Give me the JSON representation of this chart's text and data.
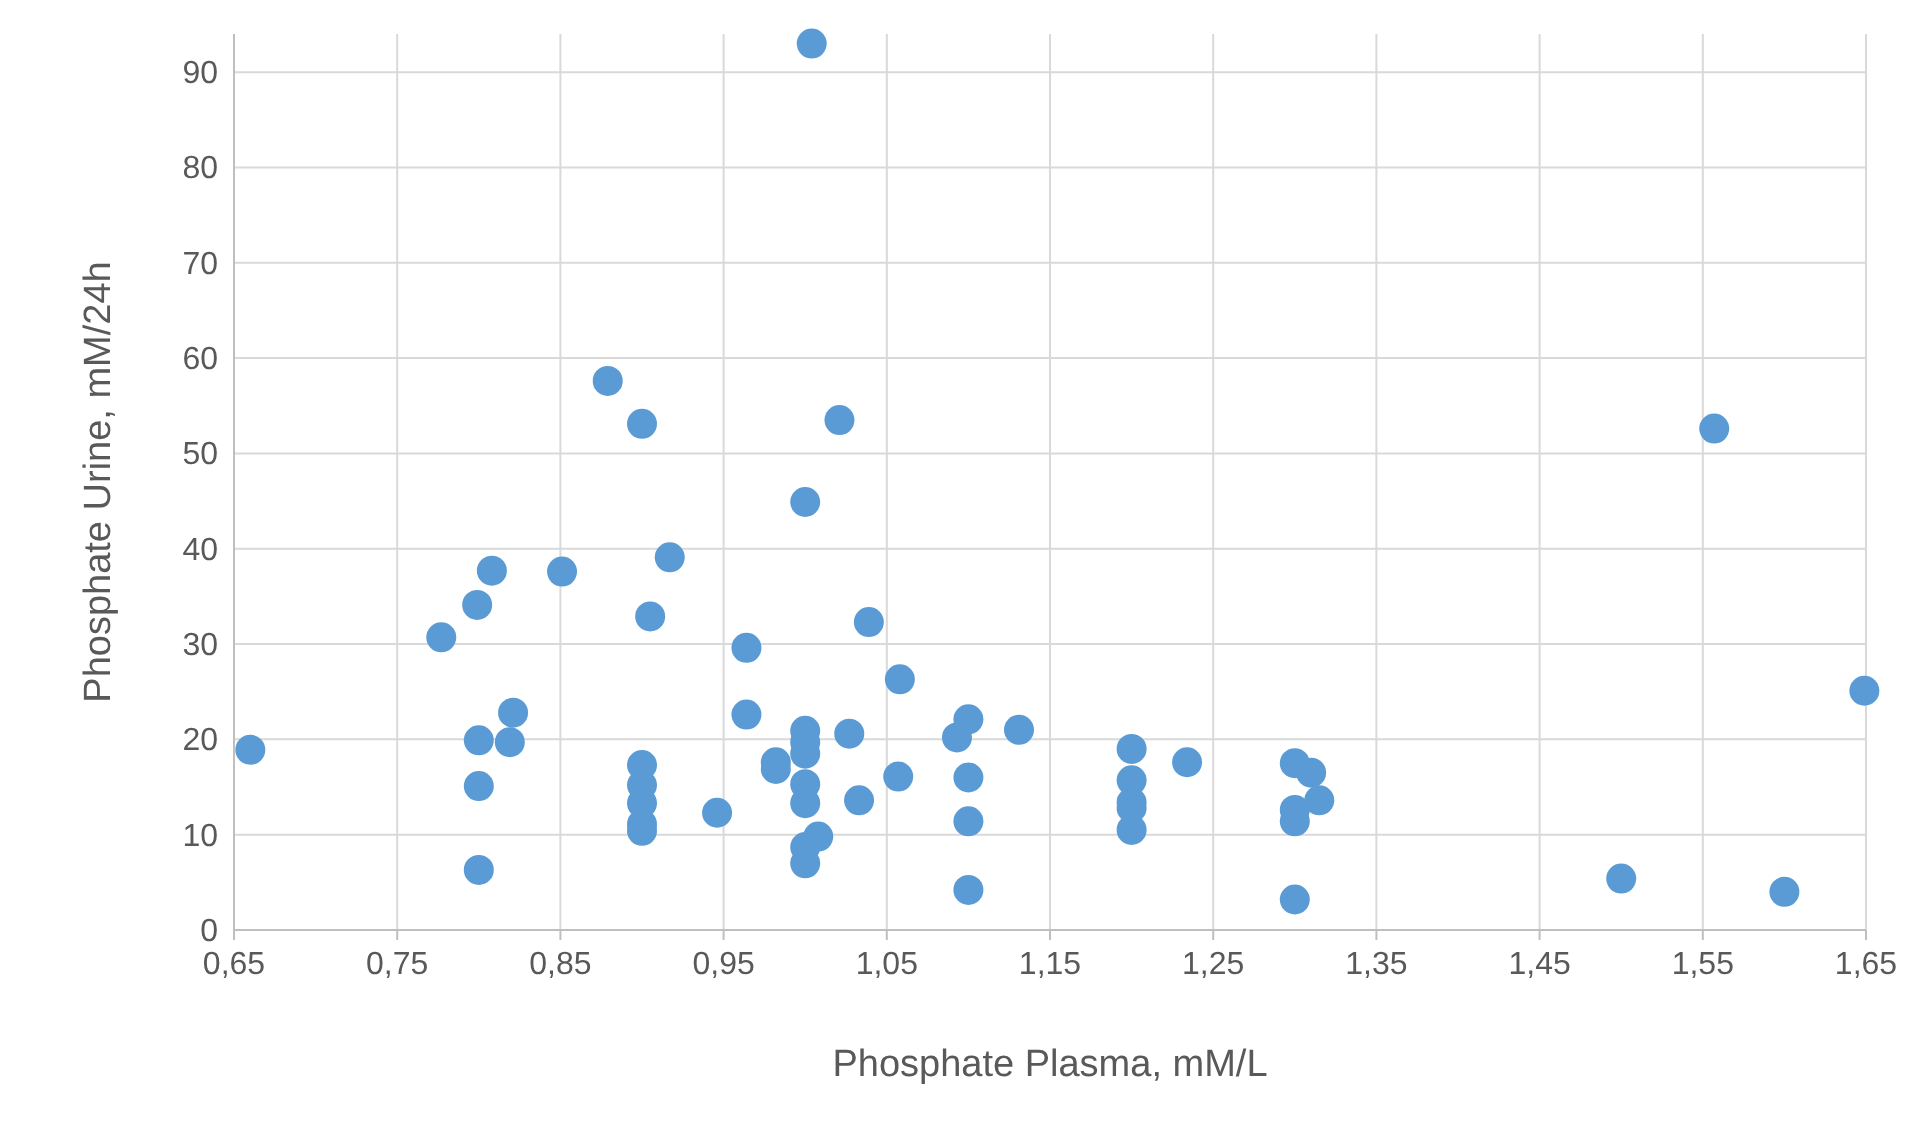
{
  "chart_data": {
    "type": "scatter",
    "xlabel": "Phosphate Plasma, mM/L",
    "ylabel": "Phosphate Urine, mM/24h",
    "xlim": [
      0.65,
      1.65
    ],
    "ylim": [
      0,
      94
    ],
    "xticks": [
      {
        "value": 0.65,
        "label": "0,65"
      },
      {
        "value": 0.75,
        "label": "0,75"
      },
      {
        "value": 0.85,
        "label": "0,85"
      },
      {
        "value": 0.95,
        "label": "0,95"
      },
      {
        "value": 1.05,
        "label": "1,05"
      },
      {
        "value": 1.15,
        "label": "1,15"
      },
      {
        "value": 1.25,
        "label": "1,25"
      },
      {
        "value": 1.35,
        "label": "1,35"
      },
      {
        "value": 1.45,
        "label": "1,45"
      },
      {
        "value": 1.55,
        "label": "1,55"
      },
      {
        "value": 1.65,
        "label": "1,65"
      }
    ],
    "yticks": [
      0,
      10,
      20,
      30,
      40,
      50,
      60,
      70,
      80,
      90
    ],
    "grid": true,
    "marker": "circle",
    "series": [
      {
        "color": "#5b9bd5",
        "x": [
          0.66,
          0.777,
          0.799,
          0.808,
          0.8,
          0.819,
          0.821,
          0.8,
          0.8,
          0.851,
          0.879,
          0.9,
          0.917,
          0.905,
          0.9,
          0.9,
          0.9,
          0.9,
          0.9,
          0.946,
          0.964,
          0.964,
          0.982,
          0.982,
          1.0,
          1.021,
          1.0,
          1.0,
          1.0,
          1.0,
          1.0,
          1.008,
          1.0,
          1.0,
          1.027,
          1.033,
          1.039,
          1.058,
          1.057,
          1.093,
          1.1,
          1.1,
          1.1,
          1.1,
          1.131,
          1.004,
          1.557,
          1.649,
          1.2,
          1.2,
          1.2,
          1.2,
          1.2,
          1.234,
          1.3,
          1.31,
          1.315,
          1.3,
          1.3,
          1.3,
          1.5,
          1.6
        ],
        "values": [
          18.9,
          30.7,
          34.1,
          37.7,
          19.9,
          19.7,
          22.8,
          15.1,
          6.3,
          37.6,
          57.6,
          53.1,
          39.1,
          32.9,
          17.3,
          15.2,
          13.3,
          11.1,
          10.4,
          12.3,
          29.6,
          22.6,
          17.6,
          16.9,
          44.9,
          53.5,
          20.9,
          19.7,
          18.5,
          15.3,
          13.3,
          9.8,
          8.7,
          7.0,
          20.6,
          13.6,
          32.3,
          26.3,
          16.1,
          20.2,
          22.1,
          16.0,
          11.4,
          4.2,
          21.0,
          93.0,
          52.6,
          25.1,
          19.0,
          15.7,
          13.4,
          12.8,
          10.5,
          17.6,
          17.5,
          16.5,
          13.6,
          12.6,
          11.4,
          3.2,
          5.4,
          4.0
        ]
      }
    ]
  }
}
